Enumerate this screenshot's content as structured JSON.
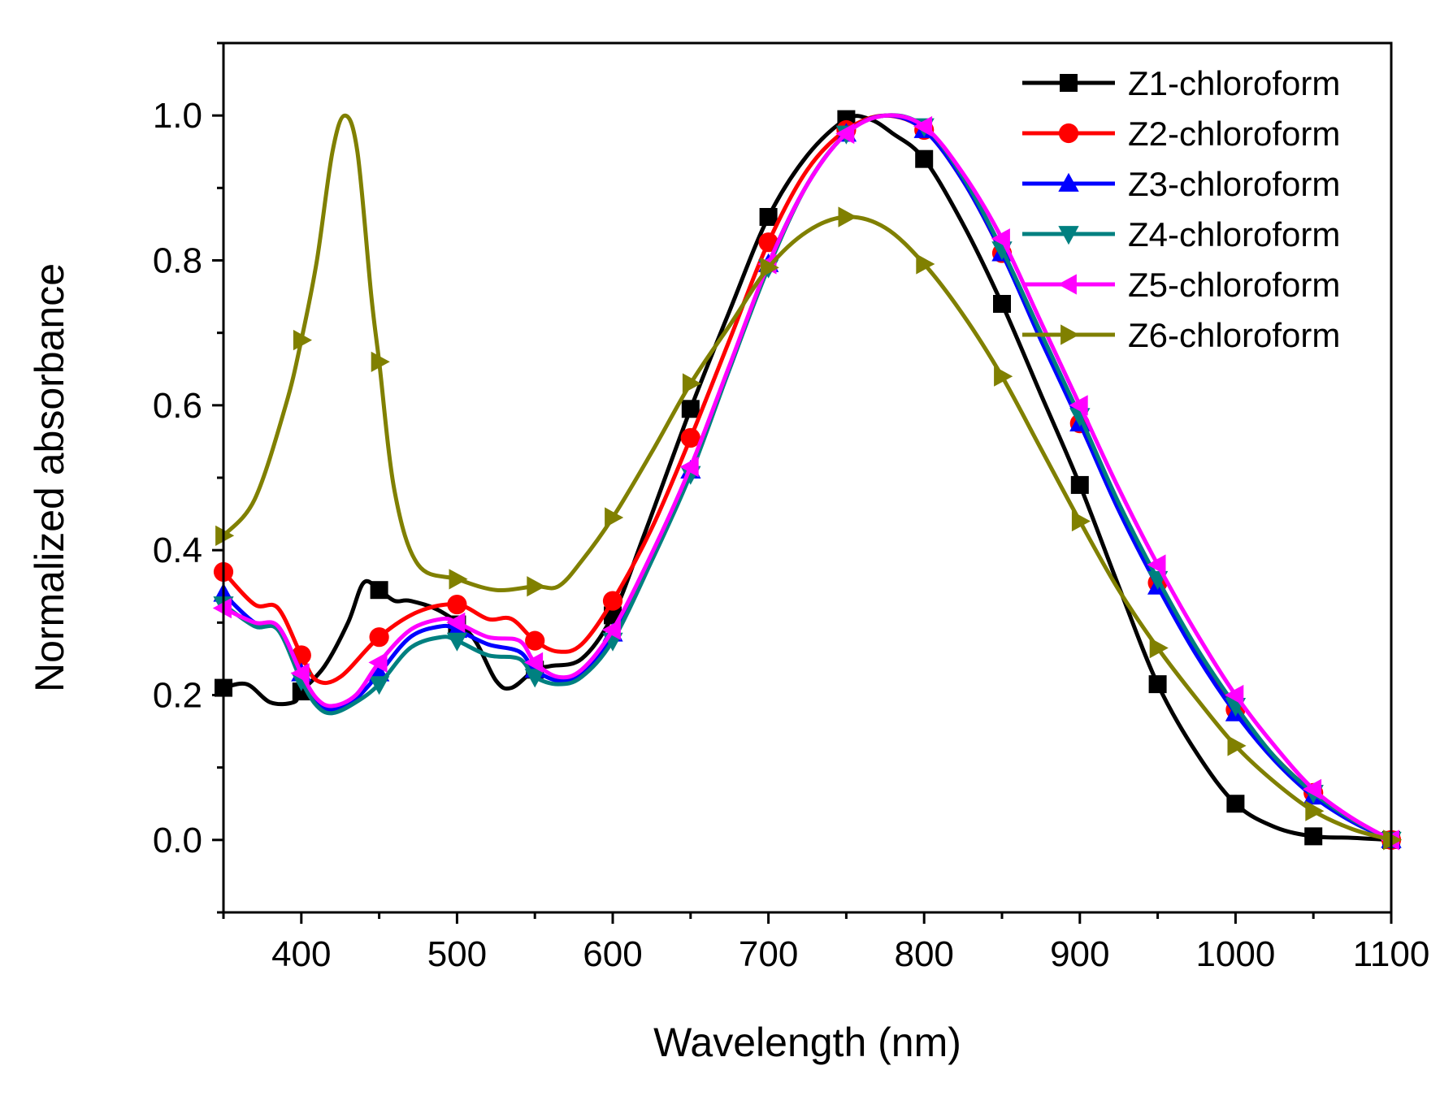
{
  "chart_data": {
    "type": "line",
    "title": "",
    "xlabel": "Wavelength (nm)",
    "ylabel": "Normalized absorbance",
    "xlim": [
      350,
      1100
    ],
    "ylim": [
      -0.1,
      1.1
    ],
    "xticks": [
      400,
      500,
      600,
      700,
      800,
      900,
      1000,
      1100
    ],
    "xtick_labels": [
      "400",
      "500",
      "600",
      "700",
      "800",
      "900",
      "1000",
      "1100"
    ],
    "yticks": [
      0.0,
      0.2,
      0.4,
      0.6,
      0.8,
      1.0
    ],
    "ytick_labels": [
      "0.0",
      "0.2",
      "0.4",
      "0.6",
      "0.8",
      "1.0"
    ],
    "grid": false,
    "legend_position": "top-right",
    "series": [
      {
        "name": "Z1-chloroform",
        "color": "#000000",
        "marker": "square",
        "points": [
          [
            350,
            0.21
          ],
          [
            365,
            0.215
          ],
          [
            380,
            0.19
          ],
          [
            395,
            0.19
          ],
          [
            400,
            0.205
          ],
          [
            415,
            0.24
          ],
          [
            430,
            0.3
          ],
          [
            440,
            0.355
          ],
          [
            450,
            0.345
          ],
          [
            460,
            0.33
          ],
          [
            470,
            0.33
          ],
          [
            490,
            0.315
          ],
          [
            510,
            0.28
          ],
          [
            525,
            0.22
          ],
          [
            535,
            0.21
          ],
          [
            550,
            0.235
          ],
          [
            560,
            0.24
          ],
          [
            580,
            0.25
          ],
          [
            600,
            0.31
          ],
          [
            620,
            0.42
          ],
          [
            650,
            0.595
          ],
          [
            675,
            0.73
          ],
          [
            700,
            0.86
          ],
          [
            725,
            0.945
          ],
          [
            750,
            0.995
          ],
          [
            765,
            0.995
          ],
          [
            780,
            0.975
          ],
          [
            800,
            0.94
          ],
          [
            825,
            0.85
          ],
          [
            850,
            0.74
          ],
          [
            875,
            0.615
          ],
          [
            900,
            0.49
          ],
          [
            925,
            0.35
          ],
          [
            950,
            0.215
          ],
          [
            975,
            0.12
          ],
          [
            1000,
            0.05
          ],
          [
            1025,
            0.018
          ],
          [
            1050,
            0.005
          ],
          [
            1075,
            0.003
          ],
          [
            1100,
            0.0
          ]
        ],
        "marker_x": [
          350,
          400,
          450,
          500,
          550,
          600,
          650,
          700,
          750,
          800,
          850,
          900,
          950,
          1000,
          1050,
          1100
        ]
      },
      {
        "name": "Z2-chloroform",
        "color": "#ff0000",
        "marker": "circle",
        "points": [
          [
            350,
            0.37
          ],
          [
            370,
            0.325
          ],
          [
            385,
            0.32
          ],
          [
            400,
            0.255
          ],
          [
            410,
            0.22
          ],
          [
            425,
            0.225
          ],
          [
            450,
            0.28
          ],
          [
            475,
            0.315
          ],
          [
            500,
            0.325
          ],
          [
            520,
            0.305
          ],
          [
            535,
            0.305
          ],
          [
            550,
            0.275
          ],
          [
            565,
            0.26
          ],
          [
            580,
            0.27
          ],
          [
            600,
            0.33
          ],
          [
            625,
            0.43
          ],
          [
            650,
            0.555
          ],
          [
            675,
            0.69
          ],
          [
            700,
            0.825
          ],
          [
            725,
            0.925
          ],
          [
            750,
            0.98
          ],
          [
            775,
            1.0
          ],
          [
            800,
            0.98
          ],
          [
            825,
            0.91
          ],
          [
            850,
            0.81
          ],
          [
            875,
            0.695
          ],
          [
            900,
            0.575
          ],
          [
            925,
            0.46
          ],
          [
            950,
            0.355
          ],
          [
            975,
            0.26
          ],
          [
            1000,
            0.18
          ],
          [
            1025,
            0.115
          ],
          [
            1050,
            0.065
          ],
          [
            1075,
            0.028
          ],
          [
            1100,
            0.0
          ]
        ],
        "marker_x": [
          350,
          400,
          450,
          500,
          550,
          600,
          650,
          700,
          750,
          800,
          850,
          900,
          950,
          1000,
          1050,
          1100
        ]
      },
      {
        "name": "Z3-chloroform",
        "color": "#0000ff",
        "marker": "triangle-up",
        "points": [
          [
            350,
            0.34
          ],
          [
            370,
            0.3
          ],
          [
            385,
            0.295
          ],
          [
            400,
            0.23
          ],
          [
            410,
            0.19
          ],
          [
            420,
            0.18
          ],
          [
            435,
            0.195
          ],
          [
            450,
            0.23
          ],
          [
            470,
            0.28
          ],
          [
            490,
            0.295
          ],
          [
            500,
            0.29
          ],
          [
            520,
            0.27
          ],
          [
            540,
            0.26
          ],
          [
            550,
            0.235
          ],
          [
            565,
            0.22
          ],
          [
            580,
            0.23
          ],
          [
            600,
            0.285
          ],
          [
            625,
            0.39
          ],
          [
            650,
            0.51
          ],
          [
            675,
            0.65
          ],
          [
            700,
            0.795
          ],
          [
            725,
            0.905
          ],
          [
            750,
            0.975
          ],
          [
            775,
            1.0
          ],
          [
            800,
            0.98
          ],
          [
            825,
            0.91
          ],
          [
            850,
            0.81
          ],
          [
            875,
            0.69
          ],
          [
            900,
            0.575
          ],
          [
            925,
            0.455
          ],
          [
            950,
            0.35
          ],
          [
            975,
            0.255
          ],
          [
            1000,
            0.175
          ],
          [
            1025,
            0.11
          ],
          [
            1050,
            0.06
          ],
          [
            1075,
            0.025
          ],
          [
            1100,
            0.0
          ]
        ],
        "marker_x": [
          350,
          400,
          450,
          500,
          550,
          600,
          650,
          700,
          750,
          800,
          850,
          900,
          950,
          1000,
          1050,
          1100
        ]
      },
      {
        "name": "Z4-chloroform",
        "color": "#008080",
        "marker": "triangle-down",
        "points": [
          [
            350,
            0.325
          ],
          [
            370,
            0.295
          ],
          [
            385,
            0.29
          ],
          [
            400,
            0.22
          ],
          [
            410,
            0.185
          ],
          [
            420,
            0.175
          ],
          [
            435,
            0.19
          ],
          [
            450,
            0.215
          ],
          [
            470,
            0.265
          ],
          [
            490,
            0.28
          ],
          [
            500,
            0.275
          ],
          [
            520,
            0.255
          ],
          [
            540,
            0.25
          ],
          [
            550,
            0.225
          ],
          [
            565,
            0.215
          ],
          [
            580,
            0.225
          ],
          [
            600,
            0.275
          ],
          [
            625,
            0.385
          ],
          [
            650,
            0.505
          ],
          [
            675,
            0.65
          ],
          [
            700,
            0.79
          ],
          [
            725,
            0.905
          ],
          [
            750,
            0.975
          ],
          [
            775,
            1.0
          ],
          [
            800,
            0.985
          ],
          [
            825,
            0.915
          ],
          [
            850,
            0.815
          ],
          [
            875,
            0.7
          ],
          [
            900,
            0.585
          ],
          [
            925,
            0.465
          ],
          [
            950,
            0.36
          ],
          [
            975,
            0.265
          ],
          [
            1000,
            0.185
          ],
          [
            1025,
            0.115
          ],
          [
            1050,
            0.065
          ],
          [
            1075,
            0.028
          ],
          [
            1100,
            0.0
          ]
        ],
        "marker_x": [
          350,
          400,
          450,
          500,
          550,
          600,
          650,
          700,
          750,
          800,
          850,
          900,
          950,
          1000,
          1050,
          1100
        ]
      },
      {
        "name": "Z5-chloroform",
        "color": "#ff00ff",
        "marker": "triangle-left",
        "points": [
          [
            350,
            0.32
          ],
          [
            370,
            0.3
          ],
          [
            385,
            0.295
          ],
          [
            400,
            0.23
          ],
          [
            410,
            0.195
          ],
          [
            420,
            0.185
          ],
          [
            435,
            0.2
          ],
          [
            450,
            0.245
          ],
          [
            470,
            0.29
          ],
          [
            490,
            0.305
          ],
          [
            500,
            0.3
          ],
          [
            520,
            0.28
          ],
          [
            540,
            0.275
          ],
          [
            550,
            0.245
          ],
          [
            565,
            0.225
          ],
          [
            580,
            0.235
          ],
          [
            600,
            0.29
          ],
          [
            625,
            0.395
          ],
          [
            650,
            0.515
          ],
          [
            675,
            0.655
          ],
          [
            700,
            0.795
          ],
          [
            725,
            0.905
          ],
          [
            750,
            0.975
          ],
          [
            775,
            1.0
          ],
          [
            800,
            0.985
          ],
          [
            825,
            0.92
          ],
          [
            850,
            0.83
          ],
          [
            875,
            0.715
          ],
          [
            900,
            0.6
          ],
          [
            925,
            0.485
          ],
          [
            950,
            0.38
          ],
          [
            975,
            0.285
          ],
          [
            1000,
            0.2
          ],
          [
            1025,
            0.13
          ],
          [
            1050,
            0.07
          ],
          [
            1075,
            0.03
          ],
          [
            1100,
            0.0
          ]
        ],
        "marker_x": [
          350,
          400,
          450,
          500,
          550,
          600,
          650,
          700,
          750,
          800,
          850,
          900,
          950,
          1000,
          1050,
          1100
        ]
      },
      {
        "name": "Z6-chloroform",
        "color": "#808000",
        "marker": "triangle-right",
        "points": [
          [
            350,
            0.42
          ],
          [
            370,
            0.47
          ],
          [
            390,
            0.6
          ],
          [
            400,
            0.69
          ],
          [
            410,
            0.8
          ],
          [
            420,
            0.95
          ],
          [
            428,
            1.0
          ],
          [
            436,
            0.95
          ],
          [
            445,
            0.75
          ],
          [
            450,
            0.66
          ],
          [
            460,
            0.48
          ],
          [
            475,
            0.38
          ],
          [
            500,
            0.36
          ],
          [
            525,
            0.345
          ],
          [
            550,
            0.35
          ],
          [
            565,
            0.35
          ],
          [
            580,
            0.385
          ],
          [
            600,
            0.445
          ],
          [
            625,
            0.535
          ],
          [
            650,
            0.63
          ],
          [
            675,
            0.71
          ],
          [
            700,
            0.79
          ],
          [
            725,
            0.84
          ],
          [
            750,
            0.86
          ],
          [
            775,
            0.845
          ],
          [
            800,
            0.795
          ],
          [
            825,
            0.725
          ],
          [
            850,
            0.64
          ],
          [
            875,
            0.54
          ],
          [
            900,
            0.44
          ],
          [
            925,
            0.345
          ],
          [
            950,
            0.265
          ],
          [
            975,
            0.195
          ],
          [
            1000,
            0.13
          ],
          [
            1025,
            0.08
          ],
          [
            1050,
            0.04
          ],
          [
            1075,
            0.015
          ],
          [
            1100,
            0.0
          ]
        ],
        "marker_x": [
          350,
          400,
          450,
          500,
          550,
          600,
          650,
          700,
          750,
          800,
          850,
          900,
          950,
          1000,
          1050,
          1100
        ]
      }
    ]
  }
}
